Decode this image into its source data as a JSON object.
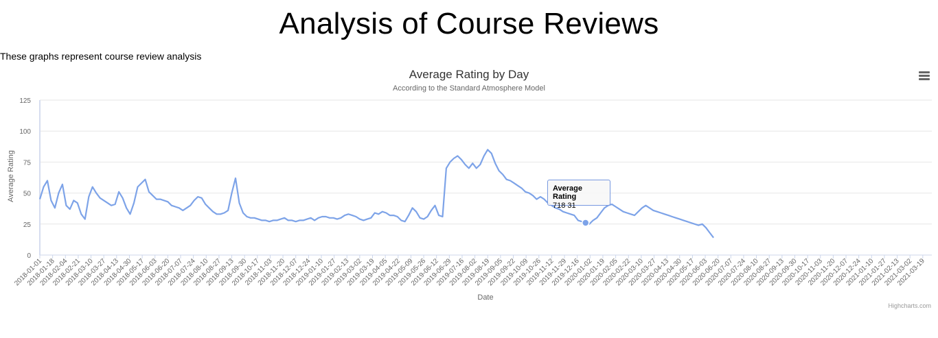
{
  "page": {
    "title": "Analysis of Course Reviews",
    "subtitle": "These graphs represent course review analysis"
  },
  "tooltip": {
    "series": "Average Rating",
    "value": "718 31"
  },
  "credits": "Highcharts.com",
  "icons": {
    "menu": "hamburger-menu-icon"
  },
  "colors": {
    "series": "#7da3e8",
    "grid": "#e6e6e6",
    "axis": "#ccd6eb",
    "tooltip_border": "#7798e0"
  },
  "chart_data": {
    "type": "line",
    "title": "Average Rating by Day",
    "subtitle": "According to the Standard Atmosphere Model",
    "xlabel": "Date",
    "ylabel": "Average Rating",
    "ylim": [
      0,
      125
    ],
    "yticks": [
      0,
      25,
      50,
      75,
      100,
      125
    ],
    "grid": true,
    "x_start": "2018-01-01",
    "x_end": "2021-03-31",
    "xtick_labels": [
      "2018-01-01",
      "2018-01-18",
      "2018-02-04",
      "2018-02-21",
      "2018-03-10",
      "2018-03-27",
      "2018-04-13",
      "2018-04-30",
      "2018-05-17",
      "2018-06-03",
      "2018-06-20",
      "2018-07-07",
      "2018-07-24",
      "2018-08-10",
      "2018-08-27",
      "2018-09-13",
      "2018-09-30",
      "2018-10-17",
      "2018-11-03",
      "2018-11-20",
      "2018-12-07",
      "2018-12-24",
      "2019-01-10",
      "2019-01-27",
      "2019-02-13",
      "2019-03-02",
      "2019-03-19",
      "2019-04-05",
      "2019-04-22",
      "2019-05-09",
      "2019-05-26",
      "2019-06-12",
      "2019-06-29",
      "2019-07-16",
      "2019-08-02",
      "2019-08-19",
      "2019-09-05",
      "2019-09-22",
      "2019-10-09",
      "2019-10-26",
      "2019-11-12",
      "2019-11-29",
      "2019-12-16",
      "2020-01-02",
      "2020-01-19",
      "2020-02-05",
      "2020-02-22",
      "2020-03-10",
      "2020-03-27",
      "2020-04-13",
      "2020-04-30",
      "2020-05-17",
      "2020-06-03",
      "2020-06-20",
      "2020-07-07",
      "2020-07-24",
      "2020-08-10",
      "2020-08-27",
      "2020-09-13",
      "2020-09-30",
      "2020-10-17",
      "2020-11-03",
      "2020-11-20",
      "2020-12-07",
      "2020-12-24",
      "2021-01-10",
      "2021-01-27",
      "2021-02-13",
      "2021-03-02",
      "2021-03-19"
    ],
    "series": [
      {
        "name": "Average Rating",
        "color": "#7da3e8",
        "step_days": 5,
        "values": [
          45,
          55,
          60,
          44,
          38,
          50,
          57,
          40,
          37,
          44,
          42,
          33,
          29,
          47,
          55,
          50,
          46,
          44,
          42,
          40,
          41,
          51,
          46,
          38,
          33,
          42,
          55,
          58,
          61,
          51,
          48,
          45,
          45,
          44,
          43,
          40,
          39,
          38,
          36,
          38,
          40,
          44,
          47,
          46,
          41,
          38,
          35,
          33,
          33,
          34,
          36,
          50,
          62,
          42,
          34,
          31,
          30,
          30,
          29,
          28,
          28,
          27,
          28,
          28,
          29,
          30,
          28,
          28,
          27,
          28,
          28,
          29,
          30,
          28,
          30,
          31,
          31,
          30,
          30,
          29,
          30,
          32,
          33,
          32,
          31,
          29,
          28,
          29,
          30,
          34,
          33,
          35,
          34,
          32,
          32,
          31,
          28,
          27,
          32,
          38,
          35,
          30,
          29,
          31,
          36,
          40,
          32,
          31,
          70,
          75,
          78,
          80,
          77,
          73,
          70,
          74,
          70,
          73,
          80,
          85,
          82,
          74,
          68,
          65,
          61,
          60,
          58,
          56,
          54,
          51,
          50,
          48,
          45,
          47,
          45,
          42,
          40,
          38,
          37,
          35,
          34,
          33,
          32,
          28,
          27,
          26,
          25,
          28,
          30,
          34,
          38,
          40,
          41,
          39,
          37,
          35,
          34,
          33,
          32,
          35,
          38,
          40,
          38,
          36,
          35,
          34,
          33,
          32,
          31,
          30,
          29,
          28,
          27,
          26,
          25,
          24,
          25,
          22,
          18,
          14
        ]
      }
    ]
  }
}
